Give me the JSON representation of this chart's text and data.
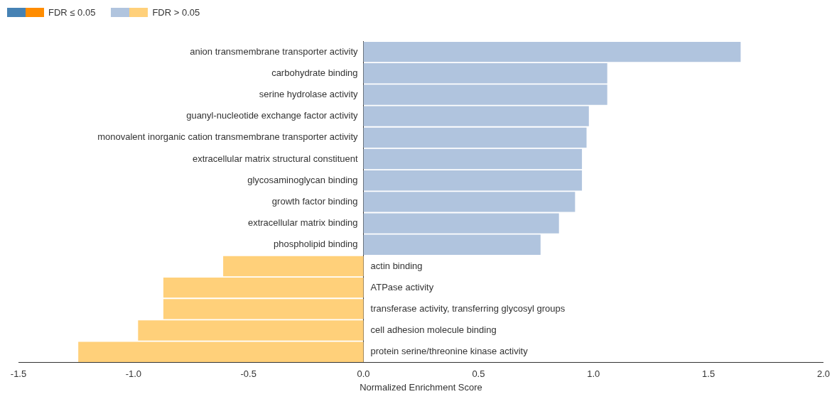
{
  "chart_data": {
    "type": "bar",
    "orientation": "horizontal",
    "xlabel": "Normalized Enrichment Score",
    "categories": [
      "anion transmembrane transporter activity",
      "carbohydrate binding",
      "serine hydrolase activity",
      "guanyl-nucleotide exchange factor activity",
      "monovalent inorganic cation transmembrane transporter activity",
      "extracellular matrix structural constituent",
      "glycosaminoglycan binding",
      "growth factor binding",
      "extracellular matrix binding",
      "phospholipid binding",
      "actin binding",
      "ATPase activity",
      "transferase activity, transferring glycosyl groups",
      "cell adhesion molecule binding",
      "protein serine/threonine kinase activity"
    ],
    "series": [
      {
        "name": "FDR ≤ 0.05",
        "values": [
          null,
          null,
          null,
          null,
          null,
          null,
          null,
          null,
          null,
          null,
          null,
          null,
          null,
          null,
          null
        ],
        "colors": [
          "#4682b4",
          "#4682b4",
          "#4682b4",
          "#4682b4",
          "#4682b4",
          "#4682b4",
          "#4682b4",
          "#4682b4",
          "#4682b4",
          "#4682b4",
          "#ff8c00",
          "#ff8c00",
          "#ff8c00",
          "#ff8c00",
          "#ff8c00"
        ]
      },
      {
        "name": "FDR > 0.05",
        "values": [
          1.64,
          1.06,
          1.06,
          0.98,
          0.97,
          0.95,
          0.95,
          0.92,
          0.85,
          0.77,
          -0.61,
          -0.87,
          -0.87,
          -0.98,
          -1.24
        ],
        "colors": [
          "#b0c4de",
          "#b0c4de",
          "#b0c4de",
          "#b0c4de",
          "#b0c4de",
          "#b0c4de",
          "#b0c4de",
          "#b0c4de",
          "#b0c4de",
          "#b0c4de",
          "#ffd07a",
          "#ffd07a",
          "#ffd07a",
          "#ffd07a",
          "#ffd07a"
        ]
      }
    ],
    "xlim": [
      -1.5,
      2.0
    ],
    "xticks": [
      -1.5,
      {
        "value": -1,
        "label": "-1.0"
      },
      -0.5,
      {
        "value": 0,
        "label": "0.0"
      },
      0.5,
      {
        "value": 1,
        "label": "1.0"
      },
      1.5,
      {
        "value": 2,
        "label": "2.0"
      }
    ],
    "legend": "top left",
    "grid": false
  }
}
